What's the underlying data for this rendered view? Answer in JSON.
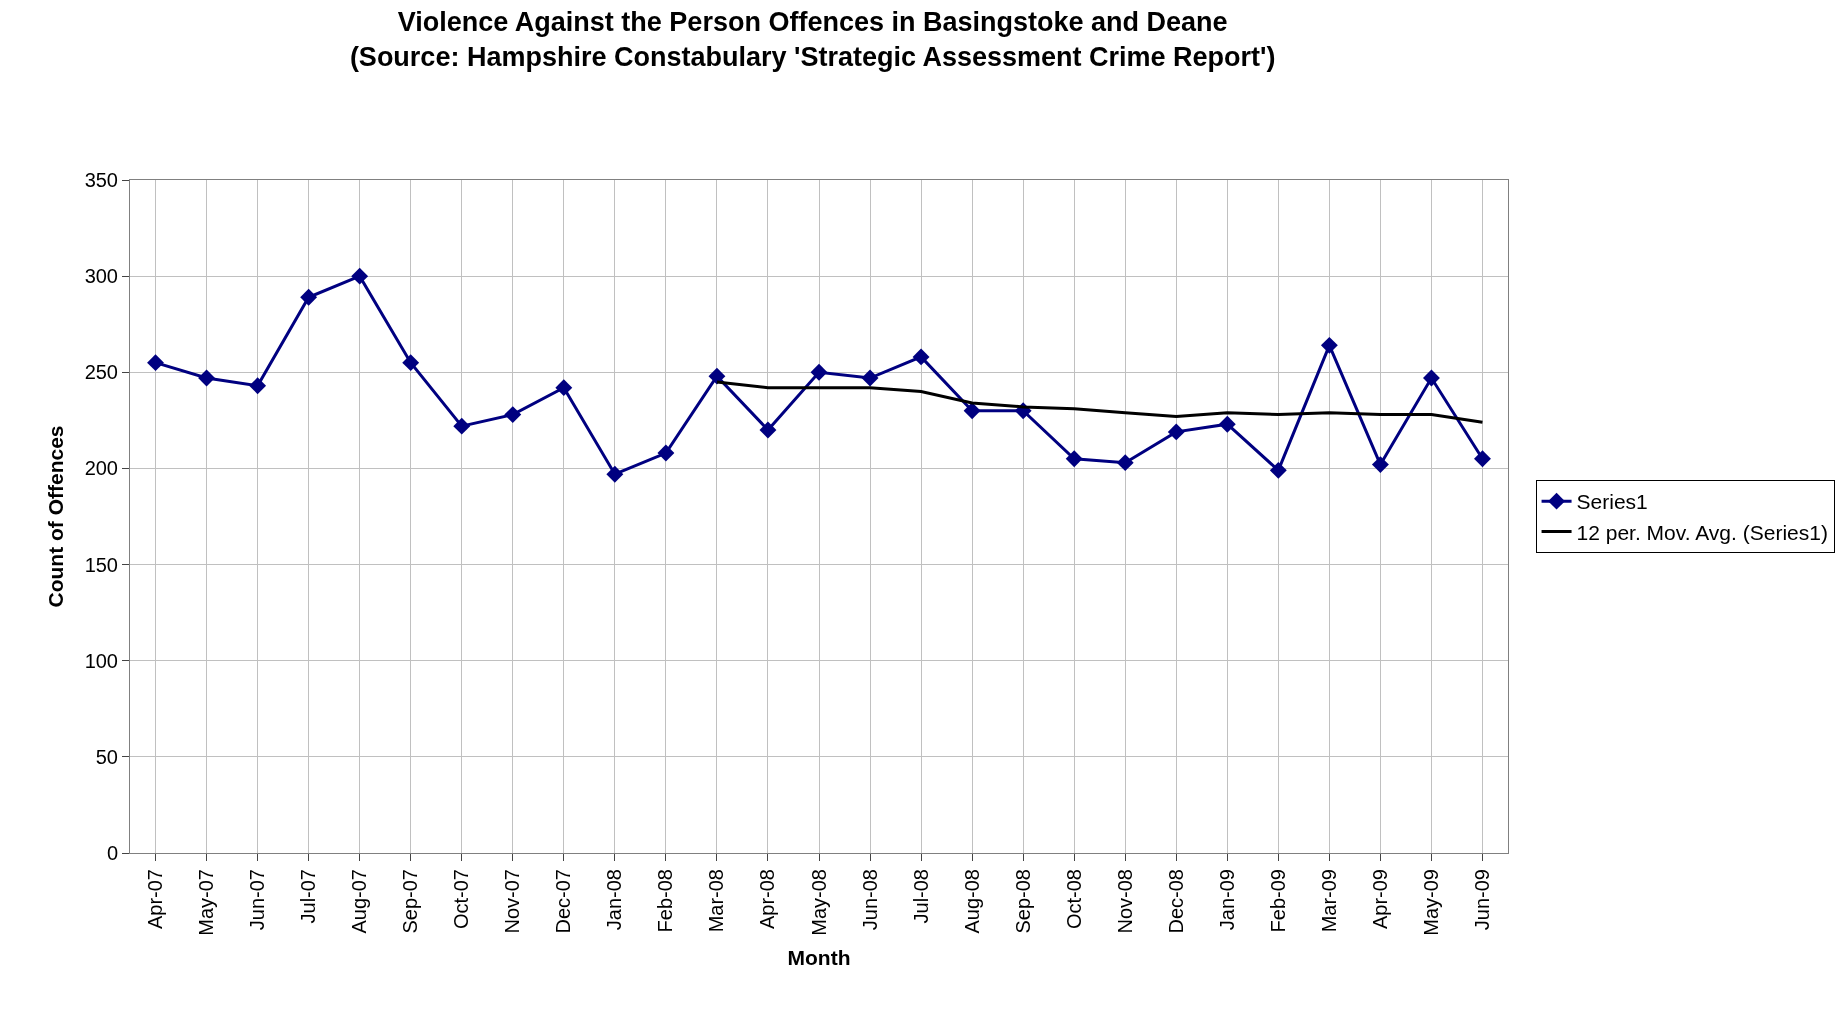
{
  "chart_data": {
    "type": "line",
    "title": "Violence Against the Person Offences in Basingstoke and Deane\n(Source: Hampshire Constabulary 'Strategic Assessment Crime Report')",
    "xlabel": "Month",
    "ylabel": "Count of Offences",
    "categories": [
      "Apr-07",
      "May-07",
      "Jun-07",
      "Jul-07",
      "Aug-07",
      "Sep-07",
      "Oct-07",
      "Nov-07",
      "Dec-07",
      "Jan-08",
      "Feb-08",
      "Mar-08",
      "Apr-08",
      "May-08",
      "Jun-08",
      "Jul-08",
      "Aug-08",
      "Sep-08",
      "Oct-08",
      "Nov-08",
      "Dec-08",
      "Jan-09",
      "Feb-09",
      "Mar-09",
      "Apr-09",
      "May-09",
      "Jun-09"
    ],
    "series": [
      {
        "name": "Series1",
        "color": "#000080",
        "marker": "diamond",
        "values": [
          255,
          247,
          243,
          289,
          300,
          255,
          222,
          228,
          242,
          197,
          208,
          248,
          220,
          250,
          247,
          258,
          230,
          230,
          205,
          203,
          219,
          223,
          199,
          264,
          202,
          247,
          205
        ]
      },
      {
        "name": "12 per. Mov. Avg. (Series1)",
        "color": "#000000",
        "marker": "none",
        "values": [
          null,
          null,
          null,
          null,
          null,
          null,
          null,
          null,
          null,
          null,
          null,
          245,
          242,
          242,
          242,
          240,
          234,
          232,
          231,
          229,
          227,
          229,
          228,
          229,
          228,
          228,
          224
        ]
      }
    ],
    "ylim": [
      0,
      350
    ],
    "yticks": [
      0,
      50,
      100,
      150,
      200,
      250,
      300,
      350
    ],
    "grid": true,
    "legend": "right"
  }
}
